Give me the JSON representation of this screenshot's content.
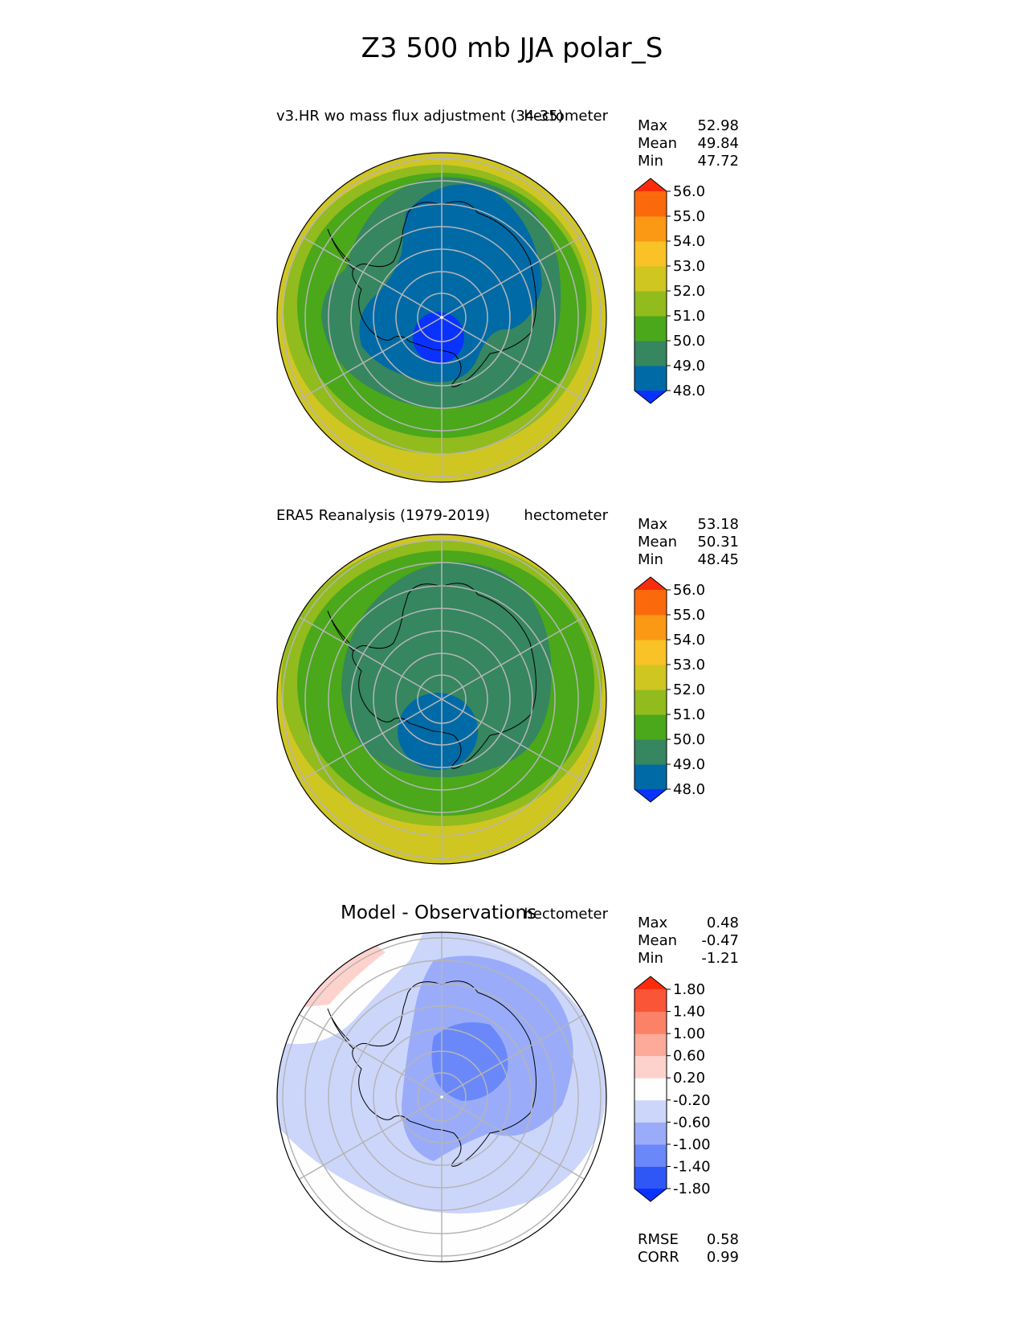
{
  "title": "Z3 500 mb JJA polar_S",
  "chart_data": [
    {
      "type": "heatmap",
      "projection": "south-polar-stereographic",
      "title_left": "v3.HR wo mass flux adjustment (34-35)",
      "units": "hectometer",
      "stats": [
        {
          "label": "Max",
          "value": "52.98"
        },
        {
          "label": "Mean",
          "value": "49.84"
        },
        {
          "label": "Min",
          "value": "47.72"
        }
      ],
      "levels": [
        "48.0",
        "49.0",
        "50.0",
        "51.0",
        "52.0",
        "53.0",
        "54.0",
        "55.0",
        "56.0"
      ],
      "level_values": [
        48,
        49,
        50,
        51,
        52,
        53,
        54,
        55,
        56
      ],
      "colors": [
        "#0a32ff",
        "#006aa6",
        "#368660",
        "#4aa81a",
        "#92bb1e",
        "#d0c622",
        "#f9c227",
        "#fb9915",
        "#fa6a0c",
        "#fa2c0c"
      ]
    },
    {
      "type": "heatmap",
      "projection": "south-polar-stereographic",
      "title_left": "ERA5 Reanalysis (1979-2019)",
      "units": "hectometer",
      "stats": [
        {
          "label": "Max",
          "value": "53.18"
        },
        {
          "label": "Mean",
          "value": "50.31"
        },
        {
          "label": "Min",
          "value": "48.45"
        }
      ],
      "levels": [
        "48.0",
        "49.0",
        "50.0",
        "51.0",
        "52.0",
        "53.0",
        "54.0",
        "55.0",
        "56.0"
      ],
      "level_values": [
        48,
        49,
        50,
        51,
        52,
        53,
        54,
        55,
        56
      ],
      "colors": [
        "#0a32ff",
        "#006aa6",
        "#368660",
        "#4aa81a",
        "#92bb1e",
        "#d0c622",
        "#f9c227",
        "#fb9915",
        "#fa6a0c",
        "#fa2c0c"
      ]
    },
    {
      "type": "heatmap",
      "projection": "south-polar-stereographic",
      "title_center": "Model - Observations",
      "units": "hectometer",
      "stats": [
        {
          "label": "Max",
          "value": "0.48"
        },
        {
          "label": "Mean",
          "value": "-0.47"
        },
        {
          "label": "Min",
          "value": "-1.21"
        }
      ],
      "levels": [
        "-1.80",
        "-1.40",
        "-1.00",
        "-0.60",
        "-0.20",
        "0.20",
        "0.60",
        "1.00",
        "1.40",
        "1.80"
      ],
      "level_values": [
        -1.8,
        -1.4,
        -1.0,
        -0.6,
        -0.2,
        0.2,
        0.6,
        1.0,
        1.4,
        1.8
      ],
      "colors": [
        "#0a32ff",
        "#2f57f5",
        "#6a88f9",
        "#9aacf9",
        "#ccd6fb",
        "#fefefe",
        "#fed2cc",
        "#fdaa9a",
        "#fc8267",
        "#fb5537",
        "#fa2c0c"
      ],
      "metrics": [
        {
          "label": "RMSE",
          "value": "0.58"
        },
        {
          "label": "CORR",
          "value": "0.99"
        }
      ]
    }
  ]
}
